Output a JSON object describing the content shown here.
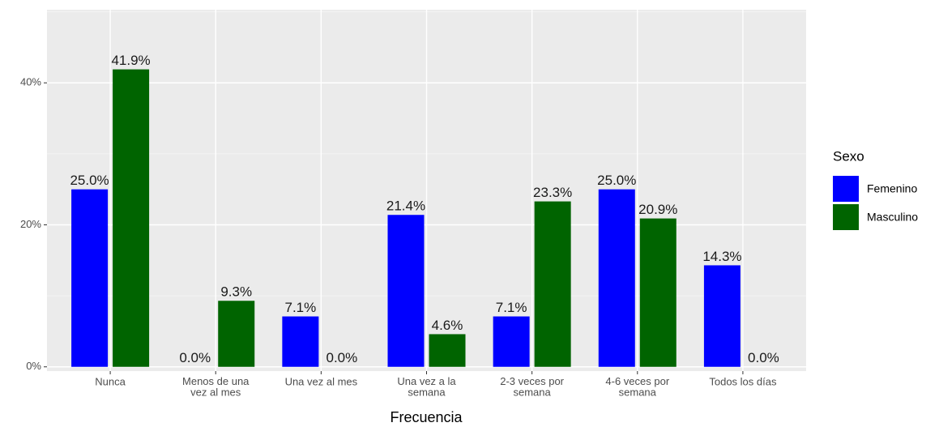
{
  "chart_data": {
    "type": "bar",
    "x_label": "Frecuencia",
    "categories": [
      "Nunca",
      "Menos de una\nvez al mes",
      "Una vez al mes",
      "Una vez a la\nsemana",
      "2-3 veces por\nsemana",
      "4-6 veces por\nsemana",
      "Todos los días"
    ],
    "series": [
      {
        "name": "Femenino",
        "color": "#0000ff",
        "values": [
          25.0,
          0.0,
          7.1,
          21.4,
          7.1,
          25.0,
          14.3
        ],
        "value_labels": [
          "25.0%",
          "0.0%",
          "7.1%",
          "21.4%",
          "7.1%",
          "25.0%",
          "14.3%"
        ]
      },
      {
        "name": "Masculino",
        "color": "#006400",
        "values": [
          41.9,
          9.3,
          0.0,
          4.6,
          23.3,
          20.9,
          0.0
        ],
        "value_labels": [
          "41.9%",
          "9.3%",
          "0.0%",
          "4.6%",
          "23.3%",
          "20.9%",
          "0.0%"
        ]
      }
    ],
    "legend_title": "Sexo",
    "legend_position": "right",
    "ylim": [
      -0.6,
      50.3
    ],
    "yticks": [
      {
        "value": 0,
        "label": "0%"
      },
      {
        "value": 20,
        "label": "20%"
      },
      {
        "value": 40,
        "label": "40%"
      }
    ],
    "grid": true
  }
}
